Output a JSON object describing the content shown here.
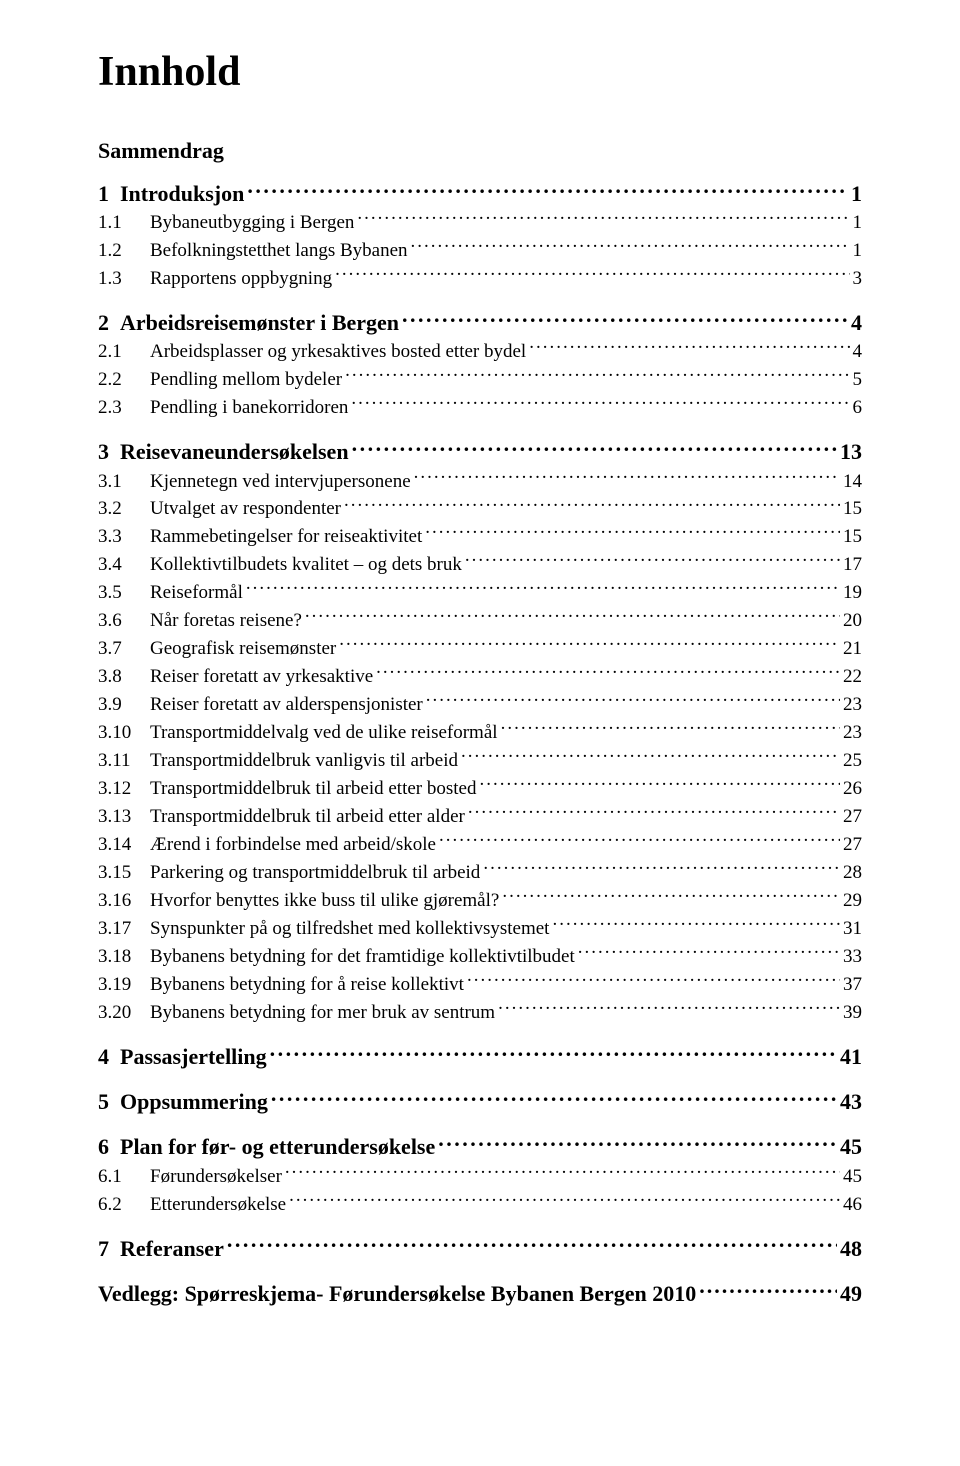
{
  "title": "Innhold",
  "sammendrag": "Sammendrag",
  "toc": [
    {
      "level": 1,
      "num": "1",
      "text": "Introduksjon",
      "page": "1"
    },
    {
      "level": 2,
      "num": "1.1",
      "text": "Bybaneutbygging i Bergen",
      "page": "1"
    },
    {
      "level": 2,
      "num": "1.2",
      "text": "Befolkningstetthet langs Bybanen",
      "page": "1"
    },
    {
      "level": 2,
      "num": "1.3",
      "text": "Rapportens oppbygning",
      "page": "3"
    },
    {
      "level": 1,
      "num": "2",
      "text": "Arbeidsreisemønster i Bergen",
      "page": "4"
    },
    {
      "level": 2,
      "num": "2.1",
      "text": "Arbeidsplasser og yrkesaktives bosted etter bydel",
      "page": "4"
    },
    {
      "level": 2,
      "num": "2.2",
      "text": "Pendling mellom bydeler",
      "page": "5"
    },
    {
      "level": 2,
      "num": "2.3",
      "text": "Pendling i banekorridoren",
      "page": "6"
    },
    {
      "level": 1,
      "num": "3",
      "text": "Reisevaneundersøkelsen",
      "page": "13"
    },
    {
      "level": 2,
      "num": "3.1",
      "text": "Kjennetegn ved intervjupersonene",
      "page": "14"
    },
    {
      "level": 2,
      "num": "3.2",
      "text": "Utvalget av respondenter",
      "page": "15"
    },
    {
      "level": 2,
      "num": "3.3",
      "text": "Rammebetingelser for reiseaktivitet",
      "page": "15"
    },
    {
      "level": 2,
      "num": "3.4",
      "text": "Kollektivtilbudets kvalitet – og dets bruk",
      "page": "17"
    },
    {
      "level": 2,
      "num": "3.5",
      "text": "Reiseformål",
      "page": "19"
    },
    {
      "level": 2,
      "num": "3.6",
      "text": "Når foretas reisene?",
      "page": "20"
    },
    {
      "level": 2,
      "num": "3.7",
      "text": "Geografisk reisemønster",
      "page": "21"
    },
    {
      "level": 2,
      "num": "3.8",
      "text": "Reiser foretatt av yrkesaktive",
      "page": "22"
    },
    {
      "level": 2,
      "num": "3.9",
      "text": "Reiser foretatt av alderspensjonister",
      "page": "23"
    },
    {
      "level": 2,
      "num": "3.10",
      "text": "Transportmiddelvalg ved de ulike reiseformål",
      "page": "23"
    },
    {
      "level": 2,
      "num": "3.11",
      "text": "Transportmiddelbruk vanligvis til arbeid",
      "page": "25"
    },
    {
      "level": 2,
      "num": "3.12",
      "text": "Transportmiddelbruk til arbeid etter bosted",
      "page": "26"
    },
    {
      "level": 2,
      "num": "3.13",
      "text": "Transportmiddelbruk til arbeid etter alder",
      "page": "27"
    },
    {
      "level": 2,
      "num": "3.14",
      "text": "Ærend i forbindelse med arbeid/skole",
      "page": "27"
    },
    {
      "level": 2,
      "num": "3.15",
      "text": "Parkering og transportmiddelbruk til arbeid",
      "page": "28"
    },
    {
      "level": 2,
      "num": "3.16",
      "text": "Hvorfor benyttes ikke buss til ulike gjøremål?",
      "page": "29"
    },
    {
      "level": 2,
      "num": "3.17",
      "text": "Synspunkter på og tilfredshet med kollektivsystemet",
      "page": "31"
    },
    {
      "level": 2,
      "num": "3.18",
      "text": "Bybanens betydning for det framtidige kollektivtilbudet",
      "page": "33"
    },
    {
      "level": 2,
      "num": "3.19",
      "text": "Bybanens betydning for å reise kollektivt",
      "page": "37"
    },
    {
      "level": 2,
      "num": "3.20",
      "text": "Bybanens betydning for mer bruk av sentrum",
      "page": "39"
    },
    {
      "level": 1,
      "num": "4",
      "text": "Passasjertelling",
      "page": "41"
    },
    {
      "level": 1,
      "num": "5",
      "text": "Oppsummering",
      "page": "43"
    },
    {
      "level": 1,
      "num": "6",
      "text": "Plan for før- og etterundersøkelse",
      "page": "45"
    },
    {
      "level": 2,
      "num": "6.1",
      "text": "Førundersøkelser",
      "page": "45"
    },
    {
      "level": 2,
      "num": "6.2",
      "text": "Etterundersøkelse",
      "page": "46"
    },
    {
      "level": 1,
      "num": "7",
      "text": "Referanser",
      "page": "48"
    }
  ],
  "vedlegg": {
    "text": "Vedlegg: Spørreskjema- Førundersøkelse Bybanen Bergen 2010",
    "page": "49"
  }
}
